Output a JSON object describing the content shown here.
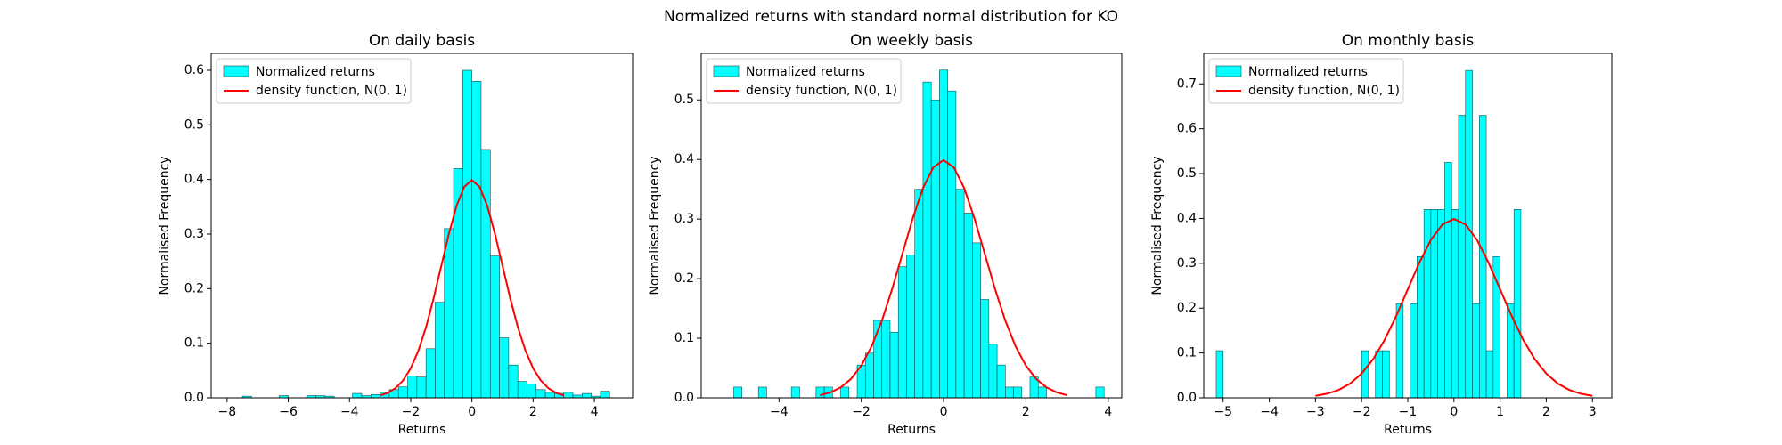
{
  "title": "Normalized returns with standard normal distribution for KO",
  "chart_data": [
    {
      "type": "histogram",
      "title": "On daily basis",
      "xlabel": "Returns",
      "ylabel": "Normalised Frequency",
      "legend": "upper left",
      "name": "Normalized returns",
      "color": "#00ffff",
      "edgecolor": "#1a4a4a",
      "bins": [
        -7.5,
        -7.2,
        -6.9,
        -6.6,
        -6.3,
        -6.0,
        -5.7,
        -5.4,
        -5.1,
        -4.8,
        -4.5,
        -4.2,
        -3.9,
        -3.6,
        -3.3,
        -3.0,
        -2.7,
        -2.4,
        -2.1,
        -1.8,
        -1.5,
        -1.2,
        -0.9,
        -0.6,
        -0.3,
        0.0,
        0.3,
        0.6,
        0.9,
        1.2,
        1.5,
        1.8,
        2.1,
        2.4,
        2.7,
        3.0,
        3.3,
        3.6,
        3.9,
        4.2,
        4.5
      ],
      "values": [
        0.003,
        0,
        0,
        0,
        0.004,
        0,
        0,
        0.004,
        0.004,
        0.003,
        0,
        0,
        0.008,
        0.004,
        0.006,
        0.01,
        0.015,
        0.02,
        0.04,
        0.038,
        0.09,
        0.175,
        0.31,
        0.42,
        0.6,
        0.58,
        0.455,
        0.26,
        0.11,
        0.06,
        0.03,
        0.025,
        0.015,
        0.01,
        0.008,
        0.01,
        0.005,
        0.008,
        0.003,
        0.012
      ],
      "line": {
        "name": "density function, N(0, 1)",
        "color": "#ff0000",
        "x": [
          -3,
          -2.75,
          -2.5,
          -2.25,
          -2,
          -1.75,
          -1.5,
          -1.25,
          -1,
          -0.75,
          -0.5,
          -0.25,
          0,
          0.25,
          0.5,
          0.75,
          1,
          1.25,
          1.5,
          1.75,
          2,
          2.25,
          2.5,
          2.75,
          3
        ],
        "values": [
          0.0044,
          0.0091,
          0.0175,
          0.0317,
          0.054,
          0.0863,
          0.1295,
          0.1826,
          0.242,
          0.3011,
          0.3521,
          0.3867,
          0.3989,
          0.3867,
          0.3521,
          0.3011,
          0.242,
          0.1826,
          0.1295,
          0.0863,
          0.054,
          0.0317,
          0.0175,
          0.0091,
          0.0044
        ]
      },
      "xlim": [
        -8.52,
        5.25
      ],
      "ylim": [
        0,
        0.631
      ],
      "xticks": [
        {
          "value": -8,
          "label": "−8"
        },
        {
          "value": -6,
          "label": "−6"
        },
        {
          "value": -4,
          "label": "−4"
        },
        {
          "value": -2,
          "label": "−2"
        },
        0,
        2,
        4
      ],
      "yticks": [
        {
          "value": 0,
          "label": "0.0"
        },
        0.1,
        0.2,
        0.3,
        0.4,
        0.5,
        0.6
      ]
    },
    {
      "type": "histogram",
      "title": "On weekly basis",
      "xlabel": "Returns",
      "ylabel": "Normalised Frequency",
      "legend": "upper left",
      "name": "Normalized returns",
      "color": "#00ffff",
      "edgecolor": "#1a4a4a",
      "bins": [
        -5.1,
        -4.9,
        -4.7,
        -4.5,
        -4.3,
        -4.1,
        -3.9,
        -3.7,
        -3.5,
        -3.3,
        -3.1,
        -2.9,
        -2.7,
        -2.5,
        -2.3,
        -2.1,
        -1.9,
        -1.7,
        -1.5,
        -1.3,
        -1.1,
        -0.9,
        -0.7,
        -0.5,
        -0.3,
        -0.1,
        0.1,
        0.3,
        0.5,
        0.7,
        0.9,
        1.1,
        1.3,
        1.5,
        1.7,
        1.9,
        2.1,
        2.3,
        2.5,
        2.7,
        2.9,
        3.1,
        3.3,
        3.5,
        3.7,
        3.9
      ],
      "values": [
        0.018,
        0,
        0,
        0.018,
        0,
        0,
        0,
        0.018,
        0,
        0,
        0.018,
        0.018,
        0,
        0.018,
        0,
        0.055,
        0.075,
        0.13,
        0.13,
        0.11,
        0.22,
        0.24,
        0.35,
        0.53,
        0.5,
        0.55,
        0.515,
        0.35,
        0.31,
        0.26,
        0.165,
        0.09,
        0.055,
        0.018,
        0.018,
        0,
        0.035,
        0.018,
        0,
        0,
        0,
        0,
        0,
        0,
        0.018
      ],
      "line": {
        "name": "density function, N(0, 1)",
        "color": "#ff0000",
        "x": [
          -3,
          -2.75,
          -2.5,
          -2.25,
          -2,
          -1.75,
          -1.5,
          -1.25,
          -1,
          -0.75,
          -0.5,
          -0.25,
          0,
          0.25,
          0.5,
          0.75,
          1,
          1.25,
          1.5,
          1.75,
          2,
          2.25,
          2.5,
          2.75,
          3
        ],
        "values": [
          0.0044,
          0.0091,
          0.0175,
          0.0317,
          0.054,
          0.0863,
          0.1295,
          0.1826,
          0.242,
          0.3011,
          0.3521,
          0.3867,
          0.3989,
          0.3867,
          0.3521,
          0.3011,
          0.242,
          0.1826,
          0.1295,
          0.0863,
          0.054,
          0.0317,
          0.0175,
          0.0091,
          0.0044
        ]
      },
      "xlim": [
        -5.89,
        4.33
      ],
      "ylim": [
        0,
        0.578
      ],
      "xticks": [
        {
          "value": -4,
          "label": "−4"
        },
        {
          "value": -2,
          "label": "−2"
        },
        0,
        2,
        4
      ],
      "yticks": [
        {
          "value": 0,
          "label": "0.0"
        },
        0.1,
        0.2,
        0.3,
        0.4,
        0.5
      ]
    },
    {
      "type": "histogram",
      "title": "On monthly basis",
      "xlabel": "Returns",
      "ylabel": "Normalised Frequency",
      "legend": "upper left",
      "name": "Normalized returns",
      "color": "#00ffff",
      "edgecolor": "#1a4a4a",
      "bins": [
        -5.15,
        -5.0,
        -4.85,
        -4.7,
        -4.55,
        -4.4,
        -4.25,
        -4.1,
        -3.95,
        -3.8,
        -3.65,
        -3.5,
        -3.35,
        -3.2,
        -3.05,
        -2.9,
        -2.75,
        -2.6,
        -2.45,
        -2.3,
        -2.15,
        -2.0,
        -1.85,
        -1.7,
        -1.55,
        -1.4,
        -1.25,
        -1.1,
        -0.95,
        -0.8,
        -0.65,
        -0.5,
        -0.35,
        -0.2,
        -0.05,
        0.1,
        0.25,
        0.4,
        0.55,
        0.7,
        0.85,
        1.0,
        1.15,
        1.3,
        1.45
      ],
      "values": [
        0.105,
        0,
        0,
        0,
        0,
        0,
        0,
        0,
        0,
        0,
        0,
        0,
        0,
        0,
        0,
        0,
        0,
        0,
        0,
        0,
        0,
        0.105,
        0,
        0.105,
        0.105,
        0,
        0.21,
        0,
        0.21,
        0.315,
        0.42,
        0.42,
        0.42,
        0.525,
        0.42,
        0.63,
        0.73,
        0.21,
        0.63,
        0.105,
        0.315,
        0,
        0.21,
        0.42
      ],
      "line": {
        "name": "density function, N(0, 1)",
        "color": "#ff0000",
        "x": [
          -3,
          -2.75,
          -2.5,
          -2.25,
          -2,
          -1.75,
          -1.5,
          -1.25,
          -1,
          -0.75,
          -0.5,
          -0.25,
          0,
          0.25,
          0.5,
          0.75,
          1,
          1.25,
          1.5,
          1.75,
          2,
          2.25,
          2.5,
          2.75,
          3
        ],
        "values": [
          0.0044,
          0.0091,
          0.0175,
          0.0317,
          0.054,
          0.0863,
          0.1295,
          0.1826,
          0.242,
          0.3011,
          0.3521,
          0.3867,
          0.3989,
          0.3867,
          0.3521,
          0.3011,
          0.242,
          0.1826,
          0.1295,
          0.0863,
          0.054,
          0.0317,
          0.0175,
          0.0091,
          0.0044
        ]
      },
      "xlim": [
        -5.42,
        3.42
      ],
      "ylim": [
        0,
        0.768
      ],
      "xticks": [
        {
          "value": -5,
          "label": "−5"
        },
        {
          "value": -4,
          "label": "−4"
        },
        {
          "value": -3,
          "label": "−3"
        },
        {
          "value": -2,
          "label": "−2"
        },
        {
          "value": -1,
          "label": "−1"
        },
        0,
        1,
        2,
        3
      ],
      "yticks": [
        {
          "value": 0,
          "label": "0.0"
        },
        0.1,
        0.2,
        0.3,
        0.4,
        0.5,
        0.6,
        0.7
      ]
    }
  ]
}
